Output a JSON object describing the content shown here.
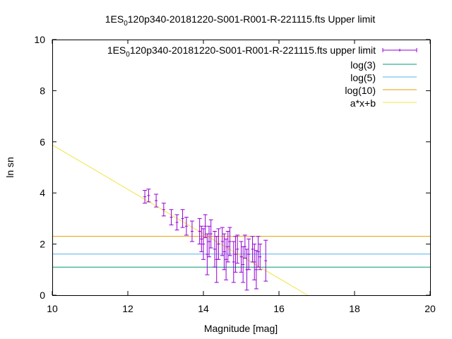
{
  "chart_data": {
    "type": "scatter",
    "title_prefix": "1ES",
    "title_sub": "0",
    "title_suffix": "120p340-20181220-S001-R001-R-221115.fts Upper limit",
    "xlabel": "Magnitude [mag]",
    "ylabel": "ln sn",
    "xlim": [
      10,
      20
    ],
    "ylim": [
      0,
      10
    ],
    "xticks": [
      10,
      12,
      14,
      16,
      18,
      20
    ],
    "yticks": [
      0,
      2,
      4,
      6,
      8,
      10
    ],
    "grid": false,
    "legend_position": "top-right",
    "colors": {
      "points": "#9400d3",
      "log3": "#009e73",
      "log5": "#56b4e9",
      "log10": "#e69f00",
      "fit": "#f0e442",
      "axes": "#000000"
    },
    "series": [
      {
        "name_prefix": "1ES",
        "name_sub": "0",
        "name_suffix": "120p340-20181220-S001-R001-R-221115.fts upper limit",
        "kind": "errorbars",
        "points": [
          {
            "x": 12.45,
            "y": 3.85,
            "err": 0.25
          },
          {
            "x": 12.55,
            "y": 3.9,
            "err": 0.25
          },
          {
            "x": 12.75,
            "y": 3.7,
            "err": 0.25
          },
          {
            "x": 12.95,
            "y": 3.35,
            "err": 0.25
          },
          {
            "x": 13.15,
            "y": 3.05,
            "err": 0.3
          },
          {
            "x": 13.3,
            "y": 2.85,
            "err": 0.3
          },
          {
            "x": 13.45,
            "y": 3.0,
            "err": 0.35
          },
          {
            "x": 13.55,
            "y": 2.7,
            "err": 0.35
          },
          {
            "x": 13.7,
            "y": 2.5,
            "err": 0.4
          },
          {
            "x": 13.9,
            "y": 2.5,
            "err": 0.5
          },
          {
            "x": 13.95,
            "y": 2.2,
            "err": 0.5
          },
          {
            "x": 14.0,
            "y": 2.0,
            "err": 0.6
          },
          {
            "x": 14.05,
            "y": 2.7,
            "err": 0.45
          },
          {
            "x": 14.1,
            "y": 1.6,
            "err": 0.8
          },
          {
            "x": 14.15,
            "y": 2.1,
            "err": 0.6
          },
          {
            "x": 14.2,
            "y": 2.4,
            "err": 0.55
          },
          {
            "x": 14.3,
            "y": 1.8,
            "err": 0.7
          },
          {
            "x": 14.35,
            "y": 1.4,
            "err": 0.9
          },
          {
            "x": 14.4,
            "y": 2.0,
            "err": 0.6
          },
          {
            "x": 14.5,
            "y": 2.1,
            "err": 0.55
          },
          {
            "x": 14.55,
            "y": 1.7,
            "err": 0.7
          },
          {
            "x": 14.6,
            "y": 1.4,
            "err": 0.8
          },
          {
            "x": 14.65,
            "y": 1.9,
            "err": 0.6
          },
          {
            "x": 14.7,
            "y": 2.1,
            "err": 0.55
          },
          {
            "x": 14.8,
            "y": 1.3,
            "err": 0.8
          },
          {
            "x": 14.85,
            "y": 1.6,
            "err": 0.7
          },
          {
            "x": 14.9,
            "y": 1.8,
            "err": 0.55
          },
          {
            "x": 15.0,
            "y": 1.5,
            "err": 0.6
          },
          {
            "x": 15.05,
            "y": 1.2,
            "err": 0.7
          },
          {
            "x": 15.1,
            "y": 1.9,
            "err": 0.45
          },
          {
            "x": 15.15,
            "y": 1.0,
            "err": 0.8
          },
          {
            "x": 15.2,
            "y": 1.6,
            "err": 0.6
          },
          {
            "x": 15.3,
            "y": 1.8,
            "err": 0.5
          },
          {
            "x": 15.35,
            "y": 1.3,
            "err": 0.7
          },
          {
            "x": 15.4,
            "y": 1.0,
            "err": 0.75
          },
          {
            "x": 15.45,
            "y": 1.7,
            "err": 0.6
          },
          {
            "x": 15.5,
            "y": 1.5,
            "err": 0.5
          },
          {
            "x": 15.65,
            "y": 1.35,
            "err": 0.8
          }
        ]
      },
      {
        "name": "log(3)",
        "kind": "hline",
        "y": 1.0986
      },
      {
        "name": "log(5)",
        "kind": "hline",
        "y": 1.6094
      },
      {
        "name": "log(10)",
        "kind": "hline",
        "y": 2.3026
      },
      {
        "name": "a*x+b",
        "kind": "fit",
        "a": -0.87,
        "b": 14.58
      }
    ]
  }
}
